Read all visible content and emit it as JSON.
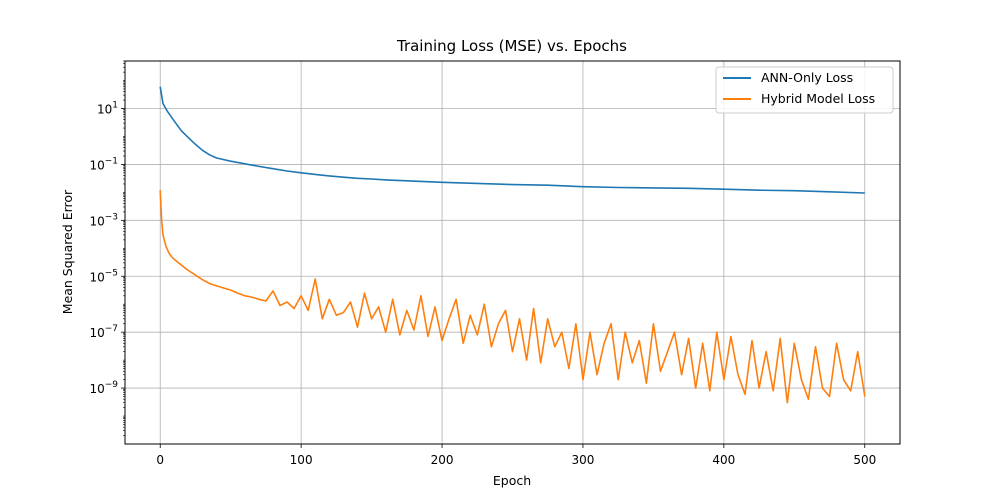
{
  "chart_data": {
    "type": "line",
    "title": "Training Loss (MSE) vs. Epochs",
    "xlabel": "Epoch",
    "ylabel": "Mean Squared Error",
    "xlim": [
      -25,
      525
    ],
    "ylim": [
      1e-11,
      500
    ],
    "yscale": "log",
    "grid": true,
    "legend_position": "top-right",
    "x_ticks": [
      0,
      100,
      200,
      300,
      400,
      500
    ],
    "x_tick_labels": [
      "0",
      "100",
      "200",
      "300",
      "400",
      "500"
    ],
    "y_ticks": [
      1e-09,
      1e-07,
      1e-05,
      0.001,
      0.1,
      10
    ],
    "y_tick_bases": [
      "10",
      "10",
      "10",
      "10",
      "10",
      "10"
    ],
    "y_tick_exponents": [
      "−9",
      "−7",
      "−5",
      "−3",
      "−1",
      "1"
    ],
    "series": [
      {
        "name": "ANN-Only Loss",
        "color": "#1f77b4",
        "x": [
          0,
          2,
          5,
          10,
          15,
          20,
          25,
          30,
          35,
          40,
          50,
          60,
          70,
          80,
          90,
          100,
          110,
          120,
          130,
          140,
          150,
          160,
          175,
          200,
          225,
          250,
          275,
          300,
          325,
          350,
          375,
          400,
          425,
          450,
          475,
          500
        ],
        "y": [
          60,
          15,
          8,
          3.5,
          1.6,
          0.9,
          0.52,
          0.32,
          0.22,
          0.17,
          0.13,
          0.105,
          0.085,
          0.07,
          0.058,
          0.05,
          0.044,
          0.039,
          0.035,
          0.032,
          0.03,
          0.028,
          0.026,
          0.023,
          0.021,
          0.019,
          0.018,
          0.016,
          0.015,
          0.0145,
          0.014,
          0.013,
          0.012,
          0.0115,
          0.0105,
          0.0095
        ]
      },
      {
        "name": "Hybrid Model Loss",
        "color": "#ff7f0e",
        "x": [
          0,
          1,
          2,
          4,
          6,
          8,
          10,
          15,
          20,
          25,
          30,
          35,
          40,
          45,
          50,
          55,
          60,
          65,
          70,
          75,
          80,
          85,
          90,
          95,
          100,
          105,
          110,
          115,
          120,
          125,
          130,
          135,
          140,
          145,
          150,
          155,
          160,
          165,
          170,
          175,
          180,
          185,
          190,
          195,
          200,
          205,
          210,
          215,
          220,
          225,
          230,
          235,
          240,
          245,
          250,
          255,
          260,
          265,
          270,
          275,
          280,
          285,
          290,
          295,
          300,
          305,
          310,
          315,
          320,
          325,
          330,
          335,
          340,
          345,
          350,
          355,
          360,
          365,
          370,
          375,
          380,
          385,
          390,
          395,
          400,
          405,
          410,
          415,
          420,
          425,
          430,
          435,
          440,
          445,
          450,
          455,
          460,
          465,
          470,
          475,
          480,
          485,
          490,
          495,
          500
        ],
        "y": [
          0.012,
          0.001,
          0.0003,
          0.00012,
          7e-05,
          5e-05,
          4e-05,
          2.5e-05,
          1.6e-05,
          1.1e-05,
          7.5e-06,
          5.5e-06,
          4.5e-06,
          3.8e-06,
          3.2e-06,
          2.5e-06,
          2e-06,
          1.8e-06,
          1.5e-06,
          1.3e-06,
          3e-06,
          9e-07,
          1.2e-06,
          7e-07,
          2e-06,
          6e-07,
          8e-06,
          3e-07,
          1.5e-06,
          4e-07,
          5e-07,
          1.2e-06,
          1.5e-07,
          2.5e-06,
          3e-07,
          8e-07,
          1e-07,
          1.5e-06,
          8e-08,
          6e-07,
          1.2e-07,
          2e-06,
          7e-08,
          8e-07,
          5e-08,
          3e-07,
          1.5e-06,
          4e-08,
          4e-07,
          8e-08,
          1e-06,
          3e-08,
          2e-07,
          6e-07,
          2e-08,
          3e-07,
          1e-08,
          7e-07,
          8e-09,
          3e-07,
          3e-08,
          1e-07,
          5e-09,
          2e-07,
          2e-09,
          1e-07,
          3e-09,
          4e-08,
          2e-07,
          2e-09,
          1e-07,
          8e-09,
          5e-08,
          1.5e-09,
          2e-07,
          4e-09,
          2e-08,
          1e-07,
          3e-09,
          6e-08,
          1e-09,
          4e-08,
          8e-10,
          1e-07,
          2e-09,
          7e-08,
          3e-09,
          6e-10,
          5e-08,
          1e-09,
          2e-08,
          8e-10,
          6e-08,
          3e-10,
          4e-08,
          2e-09,
          4e-10,
          3e-08,
          1e-09,
          5e-10,
          4e-08,
          2e-09,
          8e-10,
          2e-08,
          5e-10
        ]
      }
    ]
  }
}
